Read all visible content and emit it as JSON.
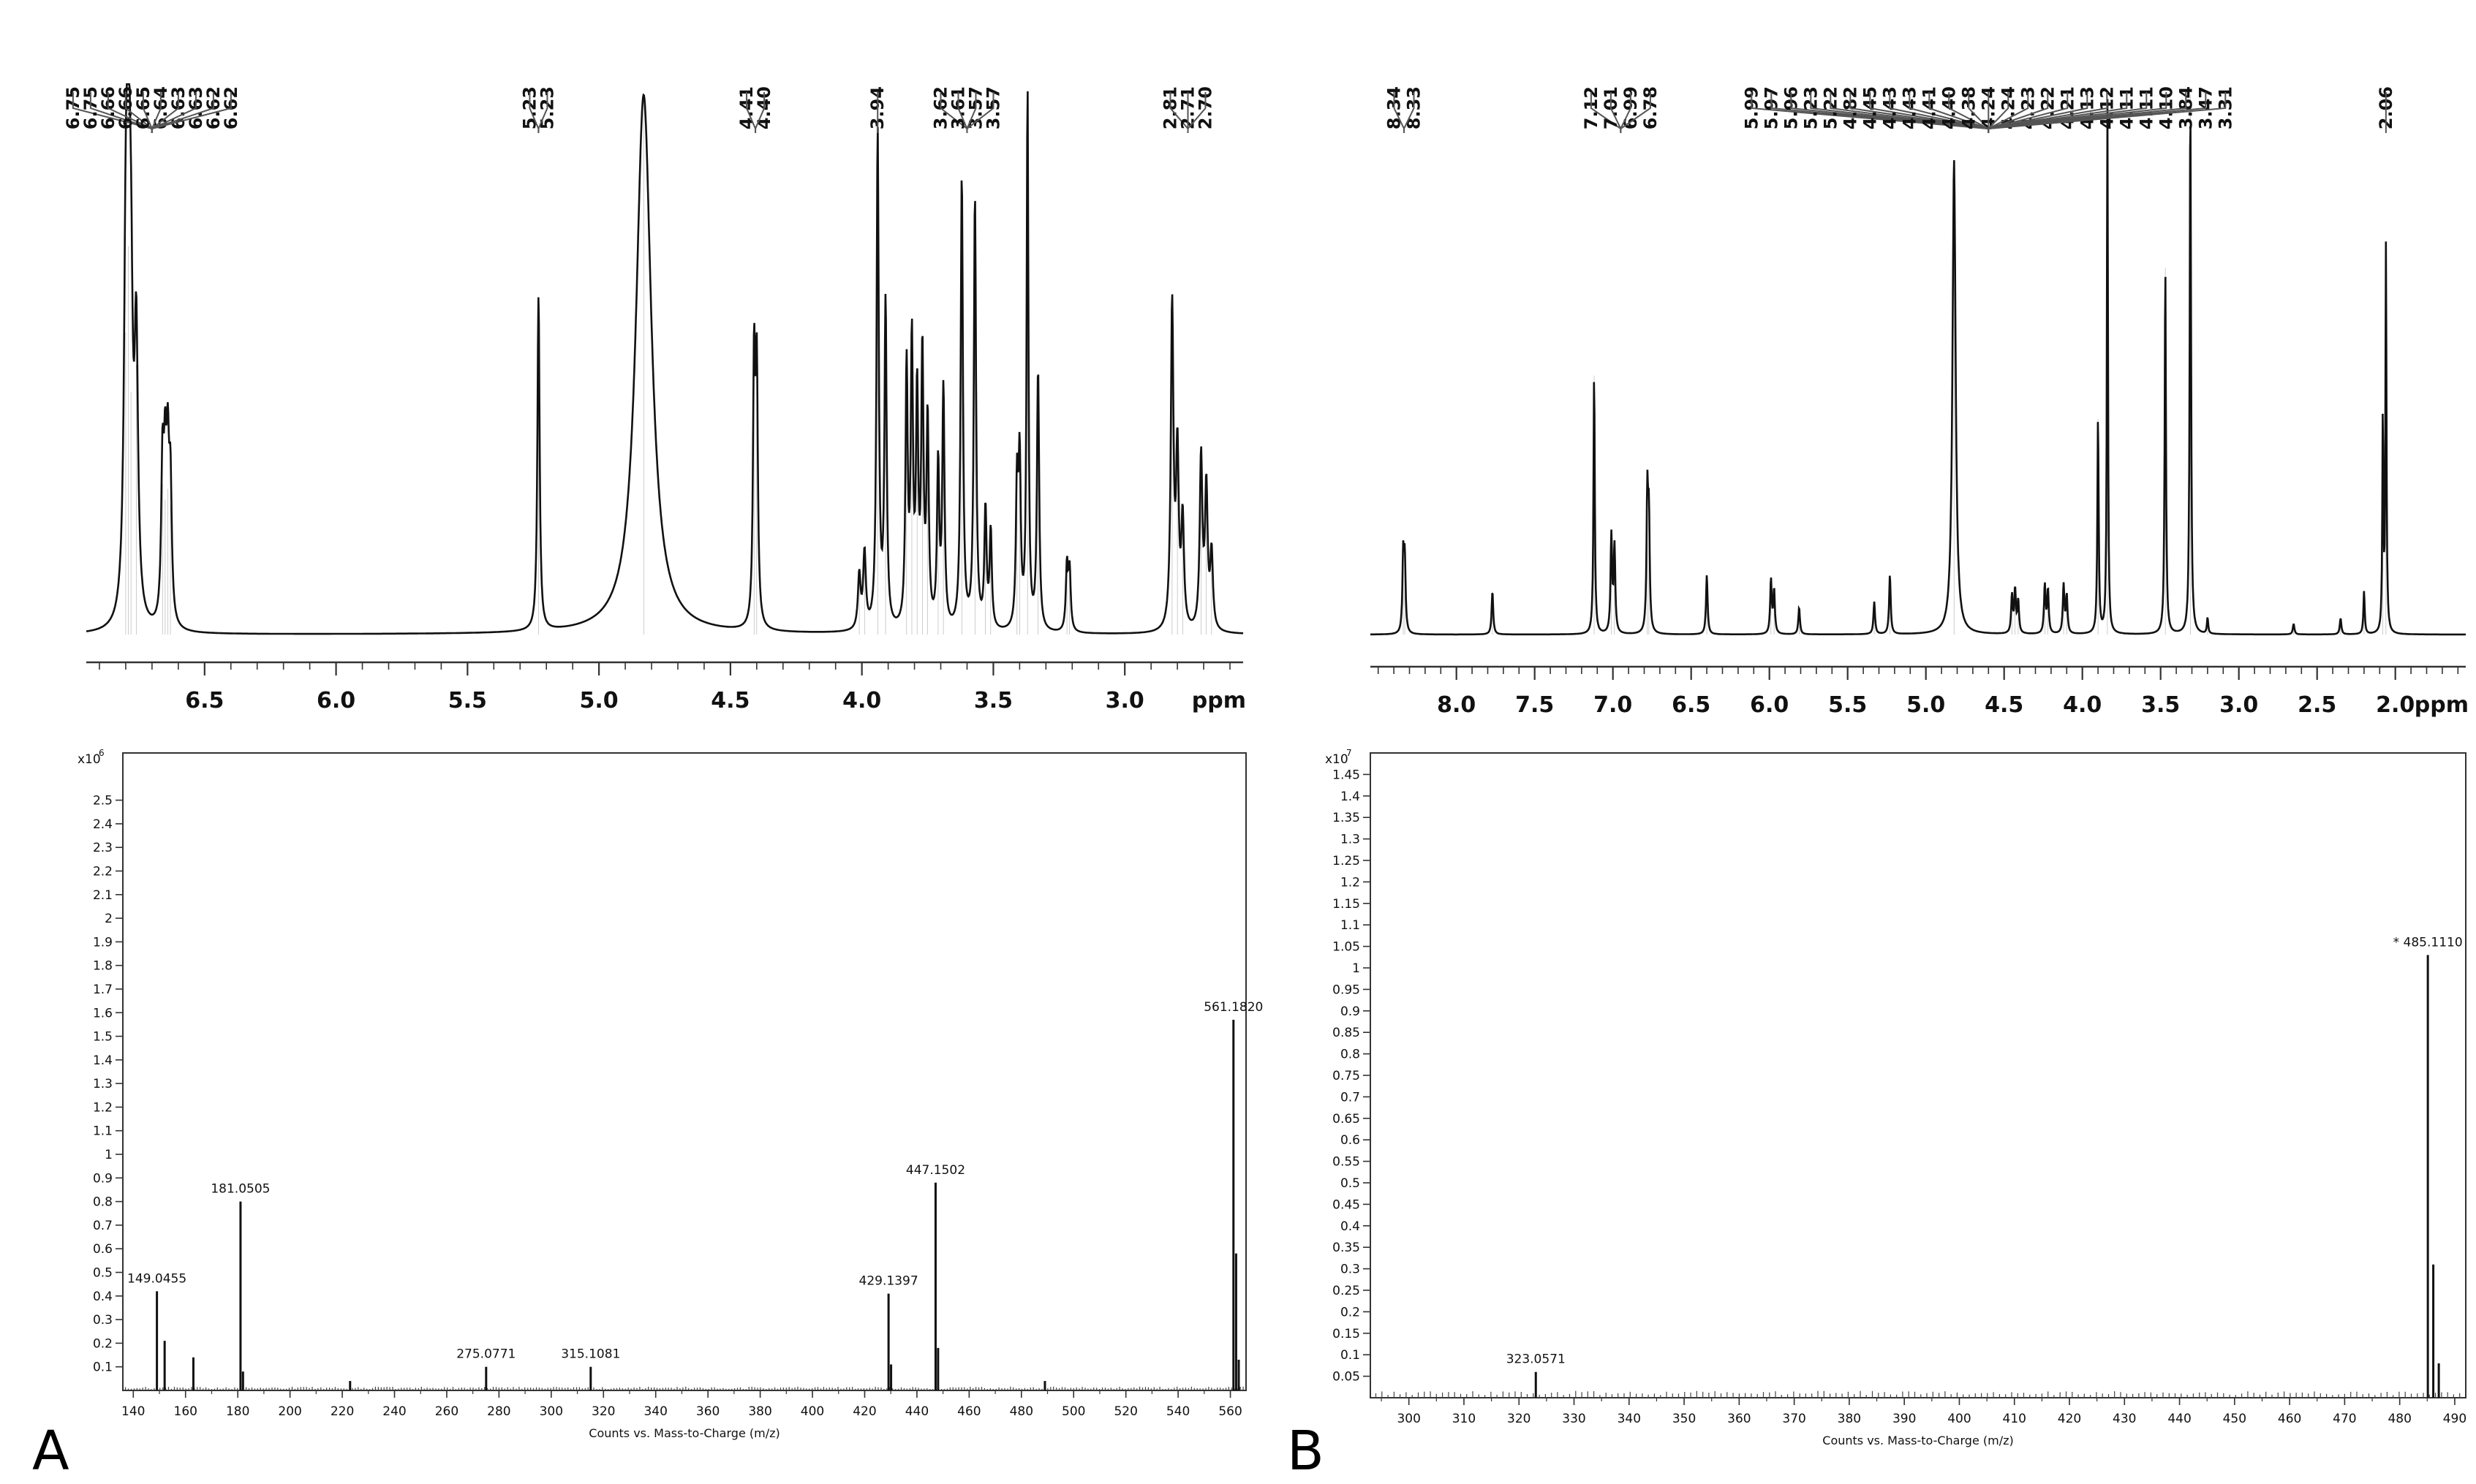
{
  "chart_data": [
    {
      "panel": "A",
      "kind": "nmr",
      "type": "line",
      "xlabel": "ppm",
      "xlim": [
        6.95,
        2.55
      ],
      "xticks": [
        6.5,
        6.0,
        5.5,
        5.0,
        4.5,
        4.0,
        3.5,
        3.0
      ],
      "xtick_labels": [
        "6.5",
        "6.0",
        "5.5",
        "5.0",
        "4.5",
        "4.0",
        "3.5",
        "3.0"
      ],
      "peak_labels": [
        {
          "groups": [
            {
              "labels": [
                "6.75",
                "6.75",
                "6.66",
                "6.66",
                "6.65",
                "6.64",
                "6.63",
                "6.63",
                "6.62",
                "6.62"
              ],
              "center": 6.7
            }
          ]
        },
        {
          "groups": [
            {
              "labels": [
                "5.23",
                "5.23"
              ],
              "center": 5.23
            }
          ]
        },
        {
          "groups": [
            {
              "labels": [
                "4.41",
                "4.40"
              ],
              "center": 4.405
            }
          ]
        },
        {
          "groups": [
            {
              "labels": [
                "3.94"
              ],
              "center": 3.94
            }
          ]
        },
        {
          "groups": [
            {
              "labels": [
                "3.62",
                "3.61",
                "3.57",
                "3.57"
              ],
              "center": 3.6
            }
          ]
        },
        {
          "groups": [
            {
              "labels": [
                "2.81",
                "2.71",
                "2.70"
              ],
              "center": 2.76
            }
          ]
        }
      ],
      "peaks": [
        {
          "ppm": 6.8,
          "h": 0.56,
          "w": 0.008
        },
        {
          "ppm": 6.79,
          "h": 0.72,
          "w": 0.008
        },
        {
          "ppm": 6.78,
          "h": 0.45,
          "w": 0.008
        },
        {
          "ppm": 6.76,
          "h": 0.5,
          "w": 0.008
        },
        {
          "ppm": 6.66,
          "h": 0.28,
          "w": 0.006
        },
        {
          "ppm": 6.65,
          "h": 0.25,
          "w": 0.006
        },
        {
          "ppm": 6.64,
          "h": 0.27,
          "w": 0.006
        },
        {
          "ppm": 6.63,
          "h": 0.24,
          "w": 0.006
        },
        {
          "ppm": 5.23,
          "h": 0.62,
          "w": 0.005
        },
        {
          "ppm": 4.83,
          "h": 1.0,
          "w": 0.035
        },
        {
          "ppm": 4.41,
          "h": 0.48,
          "w": 0.005
        },
        {
          "ppm": 4.4,
          "h": 0.46,
          "w": 0.005
        },
        {
          "ppm": 4.01,
          "h": 0.1,
          "w": 0.006
        },
        {
          "ppm": 3.99,
          "h": 0.14,
          "w": 0.006
        },
        {
          "ppm": 3.94,
          "h": 0.92,
          "w": 0.005
        },
        {
          "ppm": 3.91,
          "h": 0.6,
          "w": 0.005
        },
        {
          "ppm": 3.83,
          "h": 0.48,
          "w": 0.005
        },
        {
          "ppm": 3.81,
          "h": 0.52,
          "w": 0.005
        },
        {
          "ppm": 3.79,
          "h": 0.42,
          "w": 0.005
        },
        {
          "ppm": 3.77,
          "h": 0.5,
          "w": 0.005
        },
        {
          "ppm": 3.75,
          "h": 0.38,
          "w": 0.005
        },
        {
          "ppm": 3.71,
          "h": 0.3,
          "w": 0.005
        },
        {
          "ppm": 3.69,
          "h": 0.44,
          "w": 0.005
        },
        {
          "ppm": 3.62,
          "h": 0.84,
          "w": 0.005
        },
        {
          "ppm": 3.57,
          "h": 0.8,
          "w": 0.005
        },
        {
          "ppm": 3.53,
          "h": 0.22,
          "w": 0.005
        },
        {
          "ppm": 3.51,
          "h": 0.18,
          "w": 0.005
        },
        {
          "ppm": 3.41,
          "h": 0.26,
          "w": 0.005
        },
        {
          "ppm": 3.4,
          "h": 0.3,
          "w": 0.005
        },
        {
          "ppm": 3.37,
          "h": 1.0,
          "w": 0.004
        },
        {
          "ppm": 3.33,
          "h": 0.48,
          "w": 0.005
        },
        {
          "ppm": 3.22,
          "h": 0.12,
          "w": 0.005
        },
        {
          "ppm": 3.21,
          "h": 0.11,
          "w": 0.005
        },
        {
          "ppm": 2.82,
          "h": 0.6,
          "w": 0.006
        },
        {
          "ppm": 2.8,
          "h": 0.32,
          "w": 0.006
        },
        {
          "ppm": 2.78,
          "h": 0.2,
          "w": 0.006
        },
        {
          "ppm": 2.71,
          "h": 0.32,
          "w": 0.006
        },
        {
          "ppm": 2.69,
          "h": 0.26,
          "w": 0.006
        },
        {
          "ppm": 2.67,
          "h": 0.14,
          "w": 0.006
        }
      ]
    },
    {
      "panel": "B",
      "kind": "nmr",
      "type": "line",
      "xlabel": "ppm",
      "xlim": [
        8.55,
        1.55
      ],
      "xticks": [
        8.0,
        7.5,
        7.0,
        6.5,
        6.0,
        5.5,
        5.0,
        4.5,
        4.0,
        3.5,
        3.0,
        2.5,
        2.0
      ],
      "xtick_labels": [
        "8.0",
        "7.5",
        "7.0",
        "6.5",
        "6.0",
        "5.5",
        "5.0",
        "4.5",
        "4.0",
        "3.5",
        "3.0",
        "2.5",
        "2.0"
      ],
      "peak_labels": [
        {
          "groups": [
            {
              "labels": [
                "8.34",
                "8.33"
              ],
              "center": 8.335
            }
          ]
        },
        {
          "groups": [
            {
              "labels": [
                "7.12",
                "7.01",
                "6.99",
                "6.78"
              ],
              "center": 6.95
            }
          ]
        },
        {
          "groups": [
            {
              "labels": [
                "5.99",
                "5.97",
                "5.96",
                "5.23",
                "5.22",
                "4.82",
                "4.45",
                "4.43",
                "4.43",
                "4.41",
                "4.40",
                "4.38",
                "4.24",
                "4.24",
                "4.23",
                "4.22",
                "4.21",
                "4.13",
                "4.12",
                "4.11",
                "4.11",
                "4.10",
                "3.84",
                "3.47",
                "3.31"
              ],
              "center": 4.6
            }
          ]
        },
        {
          "groups": [
            {
              "labels": [
                "2.06"
              ],
              "center": 2.06
            }
          ]
        }
      ],
      "peaks": [
        {
          "ppm": 8.34,
          "h": 0.14,
          "w": 0.006
        },
        {
          "ppm": 8.33,
          "h": 0.13,
          "w": 0.006
        },
        {
          "ppm": 7.77,
          "h": 0.08,
          "w": 0.006
        },
        {
          "ppm": 7.12,
          "h": 0.48,
          "w": 0.005
        },
        {
          "ppm": 7.01,
          "h": 0.18,
          "w": 0.006
        },
        {
          "ppm": 6.99,
          "h": 0.16,
          "w": 0.006
        },
        {
          "ppm": 6.78,
          "h": 0.25,
          "w": 0.006
        },
        {
          "ppm": 6.77,
          "h": 0.2,
          "w": 0.006
        },
        {
          "ppm": 6.4,
          "h": 0.11,
          "w": 0.006
        },
        {
          "ppm": 5.99,
          "h": 0.1,
          "w": 0.006
        },
        {
          "ppm": 5.97,
          "h": 0.08,
          "w": 0.006
        },
        {
          "ppm": 5.81,
          "h": 0.05,
          "w": 0.006
        },
        {
          "ppm": 5.33,
          "h": 0.06,
          "w": 0.006
        },
        {
          "ppm": 5.23,
          "h": 0.11,
          "w": 0.006
        },
        {
          "ppm": 4.82,
          "h": 0.88,
          "w": 0.012
        },
        {
          "ppm": 4.45,
          "h": 0.07,
          "w": 0.006
        },
        {
          "ppm": 4.43,
          "h": 0.08,
          "w": 0.006
        },
        {
          "ppm": 4.41,
          "h": 0.06,
          "w": 0.006
        },
        {
          "ppm": 4.24,
          "h": 0.09,
          "w": 0.006
        },
        {
          "ppm": 4.22,
          "h": 0.08,
          "w": 0.006
        },
        {
          "ppm": 4.12,
          "h": 0.09,
          "w": 0.006
        },
        {
          "ppm": 4.1,
          "h": 0.07,
          "w": 0.006
        },
        {
          "ppm": 3.9,
          "h": 0.4,
          "w": 0.005
        },
        {
          "ppm": 3.84,
          "h": 1.0,
          "w": 0.004
        },
        {
          "ppm": 3.47,
          "h": 0.68,
          "w": 0.005
        },
        {
          "ppm": 3.31,
          "h": 1.0,
          "w": 0.005
        },
        {
          "ppm": 3.2,
          "h": 0.03,
          "w": 0.005
        },
        {
          "ppm": 2.65,
          "h": 0.02,
          "w": 0.006
        },
        {
          "ppm": 2.35,
          "h": 0.03,
          "w": 0.006
        },
        {
          "ppm": 2.2,
          "h": 0.08,
          "w": 0.005
        },
        {
          "ppm": 2.08,
          "h": 0.4,
          "w": 0.004
        },
        {
          "ppm": 2.06,
          "h": 0.72,
          "w": 0.004
        }
      ]
    },
    {
      "panel": "A",
      "kind": "ms",
      "type": "bar",
      "xlabel": "Counts vs. Mass-to-Charge (m/z)",
      "ylabel_exp": "x10",
      "ylabel_exp_power": "6",
      "xlim": [
        136,
        566
      ],
      "xticks": [
        140,
        160,
        180,
        200,
        220,
        240,
        260,
        280,
        300,
        320,
        340,
        360,
        380,
        400,
        420,
        440,
        460,
        480,
        500,
        520,
        540,
        560
      ],
      "ylim": [
        0,
        2.7
      ],
      "yticks": [
        0.1,
        0.2,
        0.3,
        0.4,
        0.5,
        0.6,
        0.7,
        0.8,
        0.9,
        1,
        1.1,
        1.2,
        1.3,
        1.4,
        1.5,
        1.6,
        1.7,
        1.8,
        1.9,
        2,
        2.1,
        2.2,
        2.3,
        2.4,
        2.5
      ],
      "ytick_labels": [
        "0.1",
        "0.2",
        "0.3",
        "0.4",
        "0.5",
        "0.6",
        "0.7",
        "0.8",
        "0.9",
        "1",
        "1.1",
        "1.2",
        "1.3",
        "1.4",
        "1.5",
        "1.6",
        "1.7",
        "1.8",
        "1.9",
        "2",
        "2.1",
        "2.2",
        "2.3",
        "2.4",
        "2.5"
      ],
      "peaks": [
        {
          "mz": 149.0455,
          "y": 0.42,
          "label": "149.0455"
        },
        {
          "mz": 152.0,
          "y": 0.21
        },
        {
          "mz": 163.0,
          "y": 0.14
        },
        {
          "mz": 181.0505,
          "y": 0.8,
          "label": "181.0505"
        },
        {
          "mz": 182.0,
          "y": 0.08
        },
        {
          "mz": 223.0,
          "y": 0.04
        },
        {
          "mz": 275.0771,
          "y": 0.1,
          "label": "275.0771"
        },
        {
          "mz": 315.1081,
          "y": 0.1,
          "label": "315.1081"
        },
        {
          "mz": 429.1397,
          "y": 0.41,
          "label": "429.1397"
        },
        {
          "mz": 430.1,
          "y": 0.11
        },
        {
          "mz": 447.1502,
          "y": 0.88,
          "label": "447.1502"
        },
        {
          "mz": 448.1,
          "y": 0.18
        },
        {
          "mz": 489.0,
          "y": 0.04
        },
        {
          "mz": 561.182,
          "y": 1.57,
          "label": "561.1820"
        },
        {
          "mz": 562.2,
          "y": 0.58
        },
        {
          "mz": 563.2,
          "y": 0.13
        }
      ]
    },
    {
      "panel": "B",
      "kind": "ms",
      "type": "bar",
      "xlabel": "Counts vs. Mass-to-Charge (m/z)",
      "ylabel_exp": "x10",
      "ylabel_exp_power": "7",
      "xlim": [
        293,
        492
      ],
      "xticks": [
        300,
        310,
        320,
        330,
        340,
        350,
        360,
        370,
        380,
        390,
        400,
        410,
        420,
        430,
        440,
        450,
        460,
        470,
        480,
        490
      ],
      "ylim": [
        0,
        1.5
      ],
      "yticks": [
        0.05,
        0.1,
        0.15,
        0.2,
        0.25,
        0.3,
        0.35,
        0.4,
        0.45,
        0.5,
        0.55,
        0.6,
        0.65,
        0.7,
        0.75,
        0.8,
        0.85,
        0.9,
        0.95,
        1,
        1.05,
        1.1,
        1.15,
        1.2,
        1.25,
        1.3,
        1.35,
        1.4,
        1.45
      ],
      "ytick_labels": [
        "0.05",
        "0.1",
        "0.15",
        "0.2",
        "0.25",
        "0.3",
        "0.35",
        "0.4",
        "0.45",
        "0.5",
        "0.55",
        "0.6",
        "0.65",
        "0.7",
        "0.75",
        "0.8",
        "0.85",
        "0.9",
        "0.95",
        "1",
        "1.05",
        "1.1",
        "1.15",
        "1.2",
        "1.25",
        "1.3",
        "1.35",
        "1.4",
        "1.45"
      ],
      "peaks": [
        {
          "mz": 323.0571,
          "y": 0.06,
          "label": "323.0571"
        },
        {
          "mz": 485.111,
          "y": 1.03,
          "label": "* 485.1110"
        },
        {
          "mz": 486.1,
          "y": 0.31
        },
        {
          "mz": 487.1,
          "y": 0.08
        }
      ]
    }
  ],
  "panels": {
    "a_letter": "A",
    "b_letter": "B"
  },
  "colors": {
    "ink": "#111111",
    "label_ink": "#222222"
  }
}
